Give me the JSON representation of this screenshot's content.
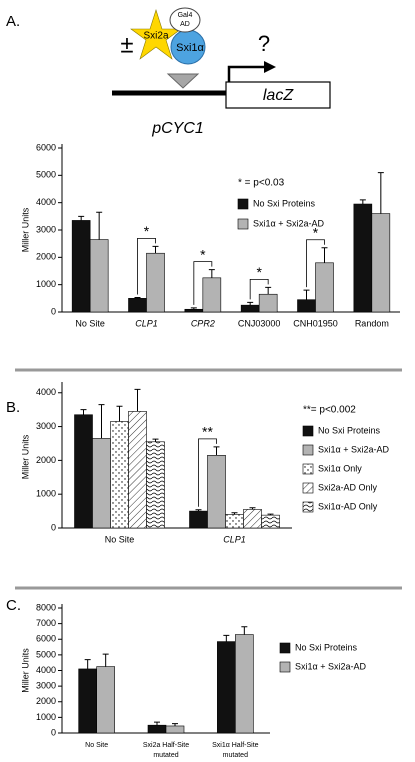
{
  "panel_labels": [
    "A.",
    "B.",
    "C."
  ],
  "diagram": {
    "star": "Sxi2a",
    "oval": [
      "Gal4",
      "AD"
    ],
    "circle": "Sxi1α",
    "plusminus": "±",
    "question": "?",
    "gene": "lacZ",
    "promoter": "pCYC1"
  },
  "chart_data": [
    {
      "type": "bar",
      "ylabel": "Miller Units",
      "note": "* = p<0.03",
      "categories": [
        "No Site",
        "CLP1",
        "CPR2",
        "CNJ03000",
        "CNH01950",
        "Random"
      ],
      "significance_labels": [
        null,
        "*",
        "*",
        "*",
        "*",
        null
      ],
      "series": [
        {
          "name": "No Sxi Proteins",
          "color": "#111111",
          "pattern": "solid",
          "values": [
            3350,
            500,
            100,
            250,
            450,
            3950
          ],
          "errors": [
            150,
            30,
            50,
            100,
            350,
            150
          ]
        },
        {
          "name": "Sxi1α + Sxi2a-AD",
          "color": "#b3b3b3",
          "pattern": "solid",
          "values": [
            2650,
            2150,
            1250,
            650,
            1800,
            3600
          ],
          "errors": [
            1000,
            250,
            300,
            250,
            550,
            1500
          ]
        }
      ],
      "ylim": [
        0,
        6000
      ],
      "yticks": [
        0,
        1000,
        2000,
        3000,
        4000,
        5000,
        6000
      ]
    },
    {
      "type": "bar",
      "ylabel": "Miller Units",
      "note": "**= p<0.002",
      "categories": [
        "No Site",
        "CLP1"
      ],
      "significance_labels": [
        null,
        "**"
      ],
      "series": [
        {
          "name": "No Sxi Proteins",
          "color": "#111111",
          "pattern": "solid",
          "values": [
            3350,
            500
          ],
          "errors": [
            150,
            40
          ]
        },
        {
          "name": "Sxi1α + Sxi2a-AD",
          "color": "#b3b3b3",
          "pattern": "solid",
          "values": [
            2650,
            2150
          ],
          "errors": [
            1000,
            250
          ]
        },
        {
          "name": "Sxi1α Only",
          "color": "#ffffff",
          "pattern": "dots",
          "values": [
            3150,
            400
          ],
          "errors": [
            450,
            50
          ]
        },
        {
          "name": "Sxi2a-AD Only",
          "color": "#ffffff",
          "pattern": "diagonal",
          "values": [
            3450,
            550
          ],
          "errors": [
            650,
            50
          ]
        },
        {
          "name": "Sxi1α-AD Only",
          "color": "#ffffff",
          "pattern": "waves",
          "values": [
            2550,
            380
          ],
          "errors": [
            80,
            30
          ]
        }
      ],
      "ylim": [
        0,
        4200
      ],
      "yticks": [
        0,
        1000,
        2000,
        3000,
        4000
      ]
    },
    {
      "type": "bar",
      "ylabel": "Miller Units",
      "categories": [
        "No Site",
        "Sxi2a Half-Site mutated",
        "Sxi1α Half-Site mutated"
      ],
      "series": [
        {
          "name": "No Sxi Proteins",
          "color": "#111111",
          "pattern": "solid",
          "values": [
            4100,
            500,
            5850
          ],
          "errors": [
            600,
            200,
            400
          ]
        },
        {
          "name": "Sxi1α + Sxi2a-AD",
          "color": "#b3b3b3",
          "pattern": "solid",
          "values": [
            4250,
            450,
            6300
          ],
          "errors": [
            800,
            150,
            500
          ]
        }
      ],
      "ylim": [
        0,
        8000
      ],
      "yticks": [
        0,
        1000,
        2000,
        3000,
        4000,
        5000,
        6000,
        7000,
        8000
      ]
    }
  ]
}
